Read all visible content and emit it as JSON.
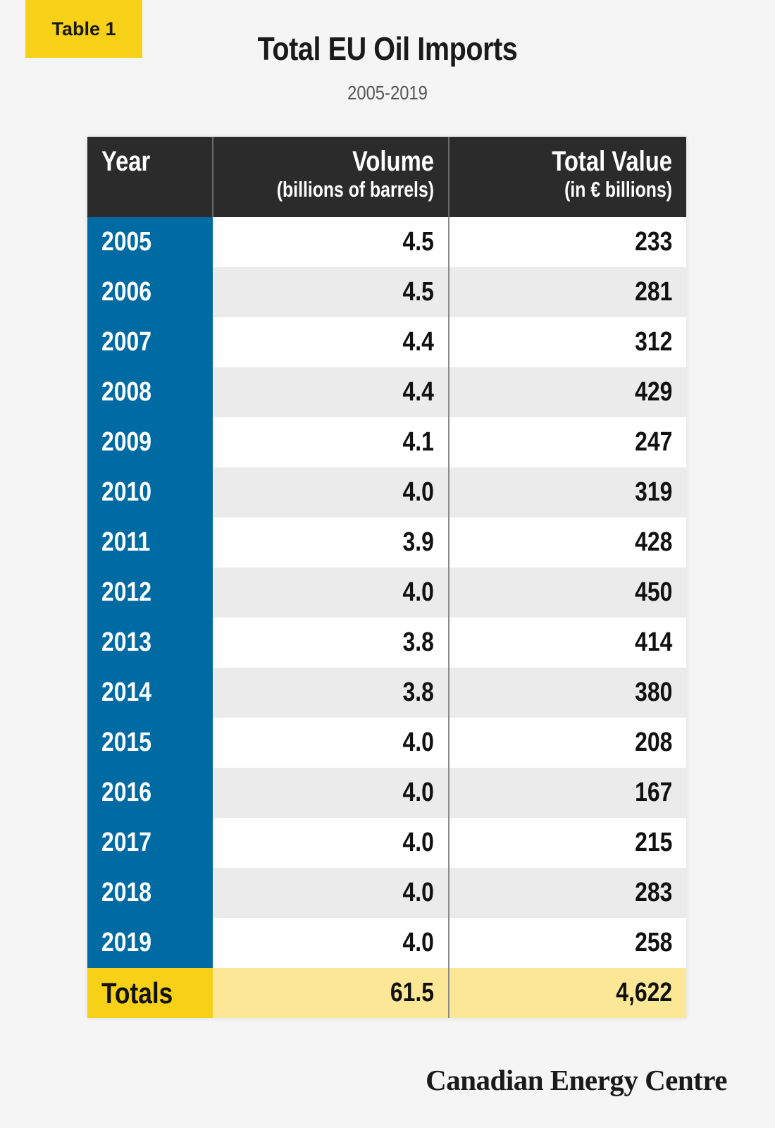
{
  "badge": "Table 1",
  "title": "Total EU Oil Imports",
  "subtitle": "2005-2019",
  "header": {
    "year": "Year",
    "volume": "Volume",
    "volume_unit": "(billions of barrels)",
    "value": "Total Value",
    "value_unit": "(in € billions)"
  },
  "totals": {
    "label": "Totals",
    "volume": "61.5",
    "value": "4,622"
  },
  "brand": "Canadian Energy Centre",
  "colors": {
    "badge": "#f7d117",
    "header_bg": "#2b2b2b",
    "year_column": "#006ba3",
    "totals_year": "#f7d117",
    "totals_row": "#fce797",
    "row_alt": "#ebebeb"
  },
  "chart_data": {
    "type": "table",
    "title": "Total EU Oil Imports",
    "subtitle": "2005-2019",
    "columns": [
      "Year",
      "Volume (billions of barrels)",
      "Total Value (in € billions)"
    ],
    "rows": [
      [
        "2005",
        "4.5",
        "233"
      ],
      [
        "2006",
        "4.5",
        "281"
      ],
      [
        "2007",
        "4.4",
        "312"
      ],
      [
        "2008",
        "4.4",
        "429"
      ],
      [
        "2009",
        "4.1",
        "247"
      ],
      [
        "2010",
        "4.0",
        "319"
      ],
      [
        "2011",
        "3.9",
        "428"
      ],
      [
        "2012",
        "4.0",
        "450"
      ],
      [
        "2013",
        "3.8",
        "414"
      ],
      [
        "2014",
        "3.8",
        "380"
      ],
      [
        "2015",
        "4.0",
        "208"
      ],
      [
        "2016",
        "4.0",
        "167"
      ],
      [
        "2017",
        "4.0",
        "215"
      ],
      [
        "2018",
        "4.0",
        "283"
      ],
      [
        "2019",
        "4.0",
        "258"
      ]
    ],
    "totals": [
      "Totals",
      "61.5",
      "4,622"
    ]
  }
}
